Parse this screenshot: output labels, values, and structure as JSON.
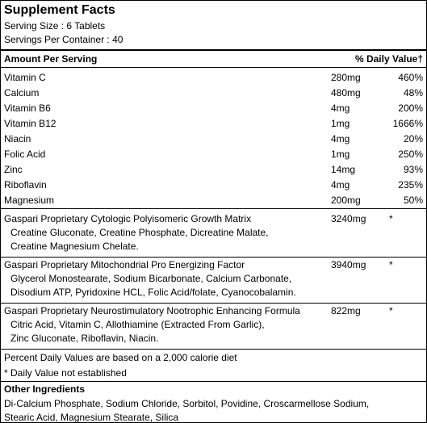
{
  "title": "Supplement Facts",
  "serving_size": "Serving Size : 6 Tablets",
  "servings_per_container": "Servings Per Container : 40",
  "table": {
    "header": [
      "Amount Per Serving",
      "% Daily Value†"
    ],
    "nutrients": [
      [
        "Vitamin C",
        "280mg",
        "460%"
      ],
      [
        "Calcium",
        "480mg",
        "48%"
      ],
      [
        "Vitamin B6",
        "4mg",
        "200%"
      ],
      [
        "Vitamin B12",
        "1mg",
        "1666%"
      ],
      [
        "Niacin",
        "4mg",
        "20%"
      ],
      [
        "Folic Acid",
        "1mg",
        "250%"
      ],
      [
        "Zinc",
        "14mg",
        "93%"
      ],
      [
        "Riboflavin",
        "4mg",
        "235%"
      ],
      [
        "Magnesium",
        "200mg",
        "50%"
      ]
    ]
  },
  "blends": [
    {
      "name": "Gaspari Proprietary Cytologic Polyisomeric Growth Matrix",
      "amount": "3240mg",
      "dv": "*",
      "ingredients": [
        "Creatine Gluconate, Creatine Phosphate, Dicreatine Malate,",
        "Creatine Magnesium Chelate."
      ]
    },
    {
      "name": "Gaspari Proprietary Mitochondrial Pro Energizing Factor",
      "amount": "3940mg",
      "dv": "*",
      "ingredients": [
        "Glycerol Monostearate, Sodium Bicarbonate, Calcium Carbonate,",
        "Disodium ATP, Pyridoxine HCL, Folic Acid/folate, Cyanocobalamin."
      ]
    },
    {
      "name": "Gaspari Proprietary Neurostimulatory Nootrophic Enhancing Formula",
      "amount": "822mg",
      "dv": "*",
      "ingredients": [
        "Citric Acid, Vitamin C, Allothiamine (Extracted From Garlic),",
        "Zinc Gluconate, Riboflavin, Niacin."
      ]
    }
  ],
  "footnotes": [
    "Percent Daily Values are based on a 2,000 calorie diet",
    "* Daily Value not established"
  ],
  "other_ingredients": {
    "title": "Other Ingredients",
    "lines": [
      "Di-Calcium Phosphate, Sodium Chloride, Sorbitol, Povidine, Croscarmellose Sodium,",
      "Stearic Acid, Magnesium Stearate, Silica"
    ]
  }
}
